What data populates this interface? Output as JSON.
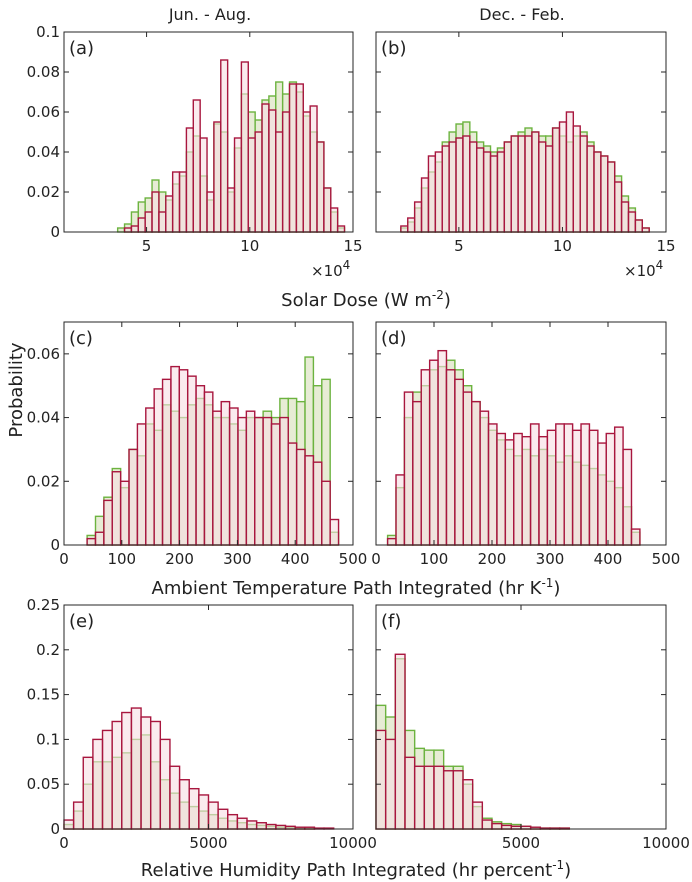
{
  "column_titles": [
    "Jun. - Aug.",
    "Dec. - Feb."
  ],
  "ylabel": "Probability",
  "colors": {
    "red_edge": "#a8163e",
    "red_fill": "#f6dde3",
    "green_edge": "#6cb33f",
    "green_fill": "#e4ead0"
  },
  "xlabels": {
    "row1": {
      "pre": "Solar Dose (W m",
      "sup": "-2",
      "post": ")"
    },
    "row2": {
      "pre": "Ambient Temperature Path Integrated (hr K",
      "sup": "-1",
      "post": ")"
    },
    "row3": {
      "pre": "Relative Humidity Path Integrated (hr percent",
      "sup": "-1",
      "post": ")"
    }
  },
  "chart_data": [
    {
      "id": "a",
      "type": "bar",
      "label": "(a)",
      "xlim": [
        1,
        15
      ],
      "ylim": [
        0,
        0.1
      ],
      "xticks": [
        5,
        10,
        15
      ],
      "xticklabels": [
        "5",
        "10",
        "15"
      ],
      "yticks": [
        0,
        0.02,
        0.04,
        0.06,
        0.08,
        0.1
      ],
      "yticklabels": [
        "0",
        "0.02",
        "0.04",
        "0.06",
        "0.08",
        "0.1"
      ],
      "x_multiplier": {
        "base": "×10",
        "exp": "4"
      },
      "bin_start": 3.6,
      "bin_width": 0.333,
      "series": [
        {
          "name": "",
          "color": "red",
          "values": [
            0.0,
            0.002,
            0.003,
            0.007,
            0.01,
            0.02,
            0.01,
            0.018,
            0.03,
            0.03,
            0.052,
            0.066,
            0.047,
            0.02,
            0.055,
            0.086,
            0.022,
            0.047,
            0.085,
            0.047,
            0.05,
            0.064,
            0.061,
            0.05,
            0.06,
            0.074,
            0.074,
            0.06,
            0.063,
            0.045,
            0.022,
            0.012,
            0.003
          ]
        },
        {
          "name": "",
          "color": "green",
          "values": [
            0.002,
            0.004,
            0.01,
            0.015,
            0.017,
            0.026,
            0.02,
            0.016,
            0.024,
            0.028,
            0.04,
            0.048,
            0.028,
            0.016,
            0.054,
            0.05,
            0.02,
            0.042,
            0.069,
            0.06,
            0.056,
            0.066,
            0.068,
            0.075,
            0.069,
            0.075,
            0.07,
            0.058,
            0.05,
            0.045,
            0.022,
            0.01,
            0.002
          ]
        }
      ]
    },
    {
      "id": "b",
      "type": "bar",
      "label": "(b)",
      "xlim": [
        1,
        15
      ],
      "ylim": [
        0,
        0.1
      ],
      "xticks": [
        5,
        10,
        15
      ],
      "xticklabels": [
        "5",
        "10",
        "15"
      ],
      "yticks": [
        0,
        0.02,
        0.04,
        0.06,
        0.08,
        0.1
      ],
      "yticklabels": [],
      "x_multiplier": {
        "base": "×10",
        "exp": "4"
      },
      "bin_start": 2.2,
      "bin_width": 0.333,
      "series": [
        {
          "name": "",
          "color": "red",
          "values": [
            0.003,
            0.007,
            0.015,
            0.027,
            0.038,
            0.04,
            0.043,
            0.045,
            0.047,
            0.048,
            0.045,
            0.042,
            0.04,
            0.038,
            0.04,
            0.045,
            0.048,
            0.048,
            0.048,
            0.05,
            0.045,
            0.043,
            0.052,
            0.055,
            0.06,
            0.053,
            0.048,
            0.043,
            0.04,
            0.038,
            0.035,
            0.025,
            0.015,
            0.01,
            0.006,
            0.002
          ]
        },
        {
          "name": "",
          "color": "green",
          "values": [
            0.002,
            0.005,
            0.012,
            0.022,
            0.03,
            0.035,
            0.045,
            0.05,
            0.054,
            0.055,
            0.05,
            0.045,
            0.043,
            0.04,
            0.042,
            0.045,
            0.048,
            0.05,
            0.052,
            0.05,
            0.048,
            0.048,
            0.052,
            0.048,
            0.045,
            0.048,
            0.05,
            0.045,
            0.04,
            0.038,
            0.035,
            0.028,
            0.018,
            0.012,
            0.006,
            0.002
          ]
        }
      ]
    },
    {
      "id": "c",
      "type": "bar",
      "label": "(c)",
      "xlim": [
        0,
        500
      ],
      "ylim": [
        0,
        0.07
      ],
      "xticks": [
        0,
        100,
        200,
        300,
        400,
        500
      ],
      "xticklabels": [
        "0",
        "100",
        "200",
        "300",
        "400",
        "500"
      ],
      "yticks": [
        0,
        0.02,
        0.04,
        0.06
      ],
      "yticklabels": [
        "0",
        "0.02",
        "0.04",
        "0.06"
      ],
      "x_multiplier": null,
      "bin_start": 40,
      "bin_width": 14.5,
      "series": [
        {
          "name": "",
          "color": "red",
          "values": [
            0.002,
            0.004,
            0.014,
            0.023,
            0.02,
            0.03,
            0.038,
            0.043,
            0.049,
            0.052,
            0.056,
            0.055,
            0.053,
            0.05,
            0.048,
            0.042,
            0.045,
            0.043,
            0.04,
            0.042,
            0.04,
            0.04,
            0.038,
            0.04,
            0.032,
            0.03,
            0.028,
            0.026,
            0.02,
            0.008
          ]
        },
        {
          "name": "",
          "color": "green",
          "values": [
            0.003,
            0.009,
            0.015,
            0.024,
            0.018,
            0.03,
            0.028,
            0.038,
            0.036,
            0.044,
            0.042,
            0.04,
            0.044,
            0.046,
            0.044,
            0.04,
            0.04,
            0.038,
            0.036,
            0.04,
            0.04,
            0.042,
            0.04,
            0.046,
            0.046,
            0.045,
            0.059,
            0.05,
            0.052,
            0.004
          ]
        }
      ]
    },
    {
      "id": "d",
      "type": "bar",
      "label": "(d)",
      "xlim": [
        0,
        500
      ],
      "ylim": [
        0,
        0.07
      ],
      "xticks": [
        0,
        100,
        200,
        300,
        400,
        500
      ],
      "xticklabels": [
        "0",
        "100",
        "200",
        "300",
        "400",
        "500"
      ],
      "yticks": [
        0,
        0.02,
        0.04,
        0.06
      ],
      "yticklabels": [],
      "x_multiplier": null,
      "bin_start": 20,
      "bin_width": 14.5,
      "series": [
        {
          "name": "",
          "color": "red",
          "values": [
            0.002,
            0.022,
            0.048,
            0.045,
            0.055,
            0.058,
            0.061,
            0.055,
            0.052,
            0.048,
            0.045,
            0.042,
            0.038,
            0.035,
            0.033,
            0.035,
            0.034,
            0.038,
            0.034,
            0.036,
            0.038,
            0.038,
            0.036,
            0.038,
            0.036,
            0.032,
            0.035,
            0.037,
            0.03,
            0.005
          ]
        },
        {
          "name": "",
          "color": "green",
          "values": [
            0.003,
            0.018,
            0.04,
            0.048,
            0.05,
            0.055,
            0.056,
            0.058,
            0.055,
            0.05,
            0.045,
            0.04,
            0.036,
            0.033,
            0.03,
            0.028,
            0.03,
            0.028,
            0.03,
            0.028,
            0.026,
            0.028,
            0.026,
            0.025,
            0.024,
            0.022,
            0.02,
            0.018,
            0.012,
            0.004
          ]
        }
      ]
    },
    {
      "id": "e",
      "type": "bar",
      "label": "(e)",
      "xlim": [
        0,
        10000
      ],
      "ylim": [
        0,
        0.25
      ],
      "xticks": [
        0,
        5000,
        10000
      ],
      "xticklabels": [
        "0",
        "5000",
        "10000"
      ],
      "yticks": [
        0,
        0.05,
        0.1,
        0.15,
        0.2,
        0.25
      ],
      "yticklabels": [
        "0",
        "0.05",
        "0.1",
        "0.15",
        "0.2",
        "0.25"
      ],
      "x_multiplier": null,
      "bin_start": 0,
      "bin_width": 333.3,
      "series": [
        {
          "name": "",
          "color": "red",
          "values": [
            0.01,
            0.03,
            0.08,
            0.1,
            0.11,
            0.12,
            0.13,
            0.135,
            0.125,
            0.12,
            0.1,
            0.07,
            0.055,
            0.045,
            0.038,
            0.03,
            0.022,
            0.016,
            0.012,
            0.009,
            0.007,
            0.005,
            0.004,
            0.003,
            0.002,
            0.002,
            0.001,
            0.001,
            0.0,
            0.0
          ]
        },
        {
          "name": "",
          "color": "green",
          "values": [
            0.005,
            0.02,
            0.05,
            0.075,
            0.075,
            0.08,
            0.085,
            0.1,
            0.105,
            0.075,
            0.055,
            0.04,
            0.03,
            0.025,
            0.02,
            0.016,
            0.012,
            0.009,
            0.007,
            0.005,
            0.004,
            0.003,
            0.002,
            0.002,
            0.001,
            0.001,
            0.0,
            0.0,
            0.0,
            0.0
          ]
        }
      ]
    },
    {
      "id": "f",
      "type": "bar",
      "label": "(f)",
      "xlim": [
        0,
        10000
      ],
      "ylim": [
        0,
        0.25
      ],
      "xticks": [
        0,
        5000,
        10000
      ],
      "xticklabels": [
        "",
        "5000",
        "10000"
      ],
      "yticks": [
        0,
        0.05,
        0.1,
        0.15,
        0.2,
        0.25
      ],
      "yticklabels": [],
      "x_multiplier": null,
      "bin_start": 0,
      "bin_width": 333.3,
      "series": [
        {
          "name": "",
          "color": "red",
          "values": [
            0.11,
            0.1,
            0.195,
            0.08,
            0.07,
            0.07,
            0.07,
            0.065,
            0.065,
            0.055,
            0.03,
            0.01,
            0.006,
            0.004,
            0.003,
            0.003,
            0.002,
            0.001,
            0.001,
            0.001,
            0.0,
            0.0,
            0.0,
            0.0,
            0.0,
            0.0,
            0.0,
            0.0,
            0.0,
            0.0
          ]
        },
        {
          "name": "",
          "color": "green",
          "values": [
            0.138,
            0.125,
            0.19,
            0.11,
            0.09,
            0.088,
            0.088,
            0.07,
            0.07,
            0.05,
            0.025,
            0.012,
            0.008,
            0.006,
            0.005,
            0.003,
            0.002,
            0.001,
            0.001,
            0.001,
            0.0,
            0.0,
            0.0,
            0.0,
            0.0,
            0.0,
            0.0,
            0.0,
            0.0,
            0.0
          ]
        }
      ]
    }
  ]
}
